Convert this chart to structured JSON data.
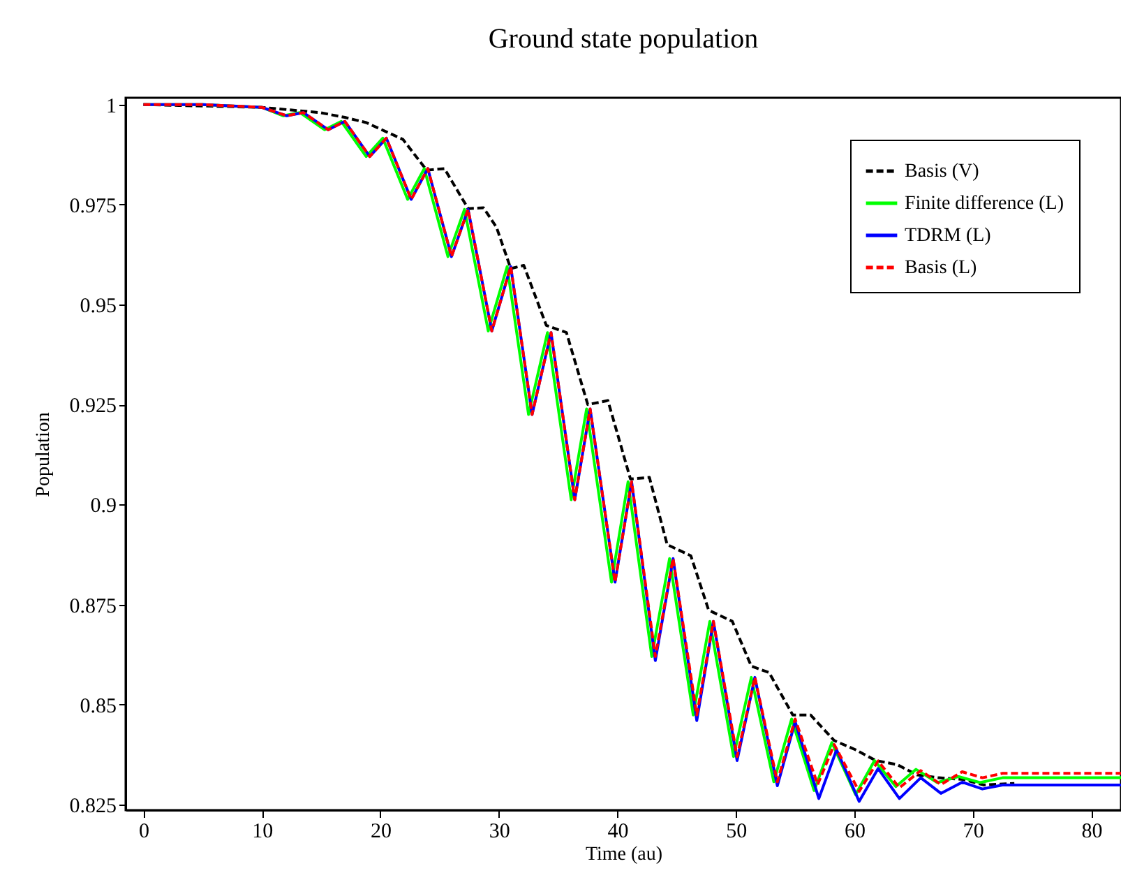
{
  "chart_data": {
    "type": "line",
    "title": "Ground state population",
    "xlabel": "Time (au)",
    "ylabel": "Population",
    "xlim": [
      -1.5,
      82.5
    ],
    "ylim": [
      0.8236,
      1.0017
    ],
    "xticks": [
      0,
      10,
      20,
      30,
      40,
      50,
      60,
      70,
      80
    ],
    "yticks": [
      0.825,
      0.85,
      0.875,
      0.9,
      0.925,
      0.95,
      0.975,
      1
    ],
    "grid": false,
    "legend": "top right",
    "marker": "none",
    "series": [
      {
        "name": "Basis (V)",
        "color": "#000000",
        "line_style": "dashed",
        "x": [
          0,
          10,
          14.9,
          17,
          18.8,
          21.9,
          23.9,
          25.4,
          27.4,
          28.7,
          29.8,
          31,
          32.1,
          34,
          35.7,
          37.5,
          39.2,
          41.1,
          42.7,
          44.2,
          46.2,
          47.7,
          49.7,
          51.3,
          52.8,
          54.8,
          56.3,
          58.3,
          60.1,
          61.8,
          63.6,
          65.3,
          67.1,
          69.2,
          70.9,
          73.5
        ],
        "values": [
          1,
          0.9993,
          0.998,
          0.9968,
          0.9955,
          0.9913,
          0.9836,
          0.984,
          0.974,
          0.9742,
          0.9693,
          0.959,
          0.9598,
          0.9448,
          0.943,
          0.925,
          0.926,
          0.9064,
          0.9068,
          0.89,
          0.8872,
          0.8736,
          0.8708,
          0.8596,
          0.858,
          0.8474,
          0.8474,
          0.841,
          0.8387,
          0.836,
          0.835,
          0.8324,
          0.8317,
          0.8313,
          0.8299,
          0.8303
        ]
      },
      {
        "name": "Finite difference (L)",
        "color": "#00ff00",
        "line_style": "solid",
        "x": [
          0,
          5,
          10,
          11.8,
          13.2,
          15.3,
          16.7,
          18.8,
          20.2,
          22.3,
          23.7,
          25.7,
          27.1,
          29.1,
          30.7,
          32.5,
          34.1,
          36.1,
          37.4,
          39.5,
          40.9,
          42.9,
          44.4,
          46.4,
          47.8,
          49.8,
          51.3,
          53.2,
          54.7,
          56.6,
          58.1,
          60.1,
          61.7,
          63.5,
          65.2,
          67,
          68.8,
          70.6,
          72.5,
          82.5
        ],
        "values": [
          1,
          1,
          0.9993,
          0.9972,
          0.998,
          0.9937,
          0.9958,
          0.987,
          0.9916,
          0.9763,
          0.984,
          0.962,
          0.9738,
          0.9434,
          0.9595,
          0.9225,
          0.943,
          0.9012,
          0.9239,
          0.8806,
          0.9057,
          0.862,
          0.8865,
          0.8474,
          0.8708,
          0.837,
          0.8568,
          0.8307,
          0.8464,
          0.8285,
          0.8405,
          0.8275,
          0.836,
          0.8295,
          0.8338,
          0.8305,
          0.832,
          0.8305,
          0.8317,
          0.8317
        ]
      },
      {
        "name": "TDRM (L)",
        "color": "#0000ff",
        "line_style": "solid",
        "x": [
          0,
          5,
          10,
          12.1,
          13.5,
          15.6,
          17,
          19.1,
          20.5,
          22.6,
          24,
          26,
          27.4,
          29.4,
          31,
          32.8,
          34.4,
          36.4,
          37.7,
          39.8,
          41.2,
          43.2,
          44.7,
          46.7,
          48.1,
          50.1,
          51.6,
          53.5,
          55,
          57,
          58.5,
          60.4,
          62,
          63.8,
          65.6,
          67.3,
          69.1,
          70.8,
          72.5,
          82.5
        ],
        "values": [
          1,
          1,
          0.9993,
          0.9972,
          0.998,
          0.9937,
          0.9958,
          0.987,
          0.9916,
          0.9763,
          0.984,
          0.962,
          0.9738,
          0.9434,
          0.9595,
          0.9225,
          0.943,
          0.9012,
          0.9239,
          0.8806,
          0.9057,
          0.861,
          0.8865,
          0.846,
          0.8708,
          0.836,
          0.8568,
          0.8297,
          0.8457,
          0.8265,
          0.8387,
          0.8258,
          0.834,
          0.8265,
          0.8317,
          0.8278,
          0.8306,
          0.8289,
          0.8299,
          0.8299
        ]
      },
      {
        "name": "Basis (L)",
        "color": "#ff0000",
        "line_style": "dashed",
        "x": [
          0,
          5,
          10,
          12.1,
          13.5,
          15.6,
          17,
          19.1,
          20.5,
          22.6,
          24,
          26,
          27.4,
          29.4,
          31,
          32.8,
          34.4,
          36.4,
          37.7,
          39.8,
          41.2,
          43.2,
          44.7,
          46.7,
          48.1,
          50.1,
          51.6,
          53.5,
          55,
          56.9,
          58.3,
          60.4,
          62,
          63.8,
          65.6,
          67.3,
          69.1,
          70.8,
          72.5,
          82.5
        ],
        "values": [
          1,
          1,
          0.9993,
          0.9972,
          0.998,
          0.9937,
          0.9958,
          0.987,
          0.9916,
          0.9763,
          0.984,
          0.962,
          0.9738,
          0.9434,
          0.9595,
          0.9225,
          0.943,
          0.9012,
          0.9239,
          0.8806,
          0.9057,
          0.862,
          0.8865,
          0.8474,
          0.8708,
          0.837,
          0.8568,
          0.8307,
          0.8464,
          0.83,
          0.84,
          0.8283,
          0.8359,
          0.8292,
          0.8335,
          0.83,
          0.8332,
          0.8317,
          0.8328,
          0.8328
        ]
      }
    ]
  }
}
